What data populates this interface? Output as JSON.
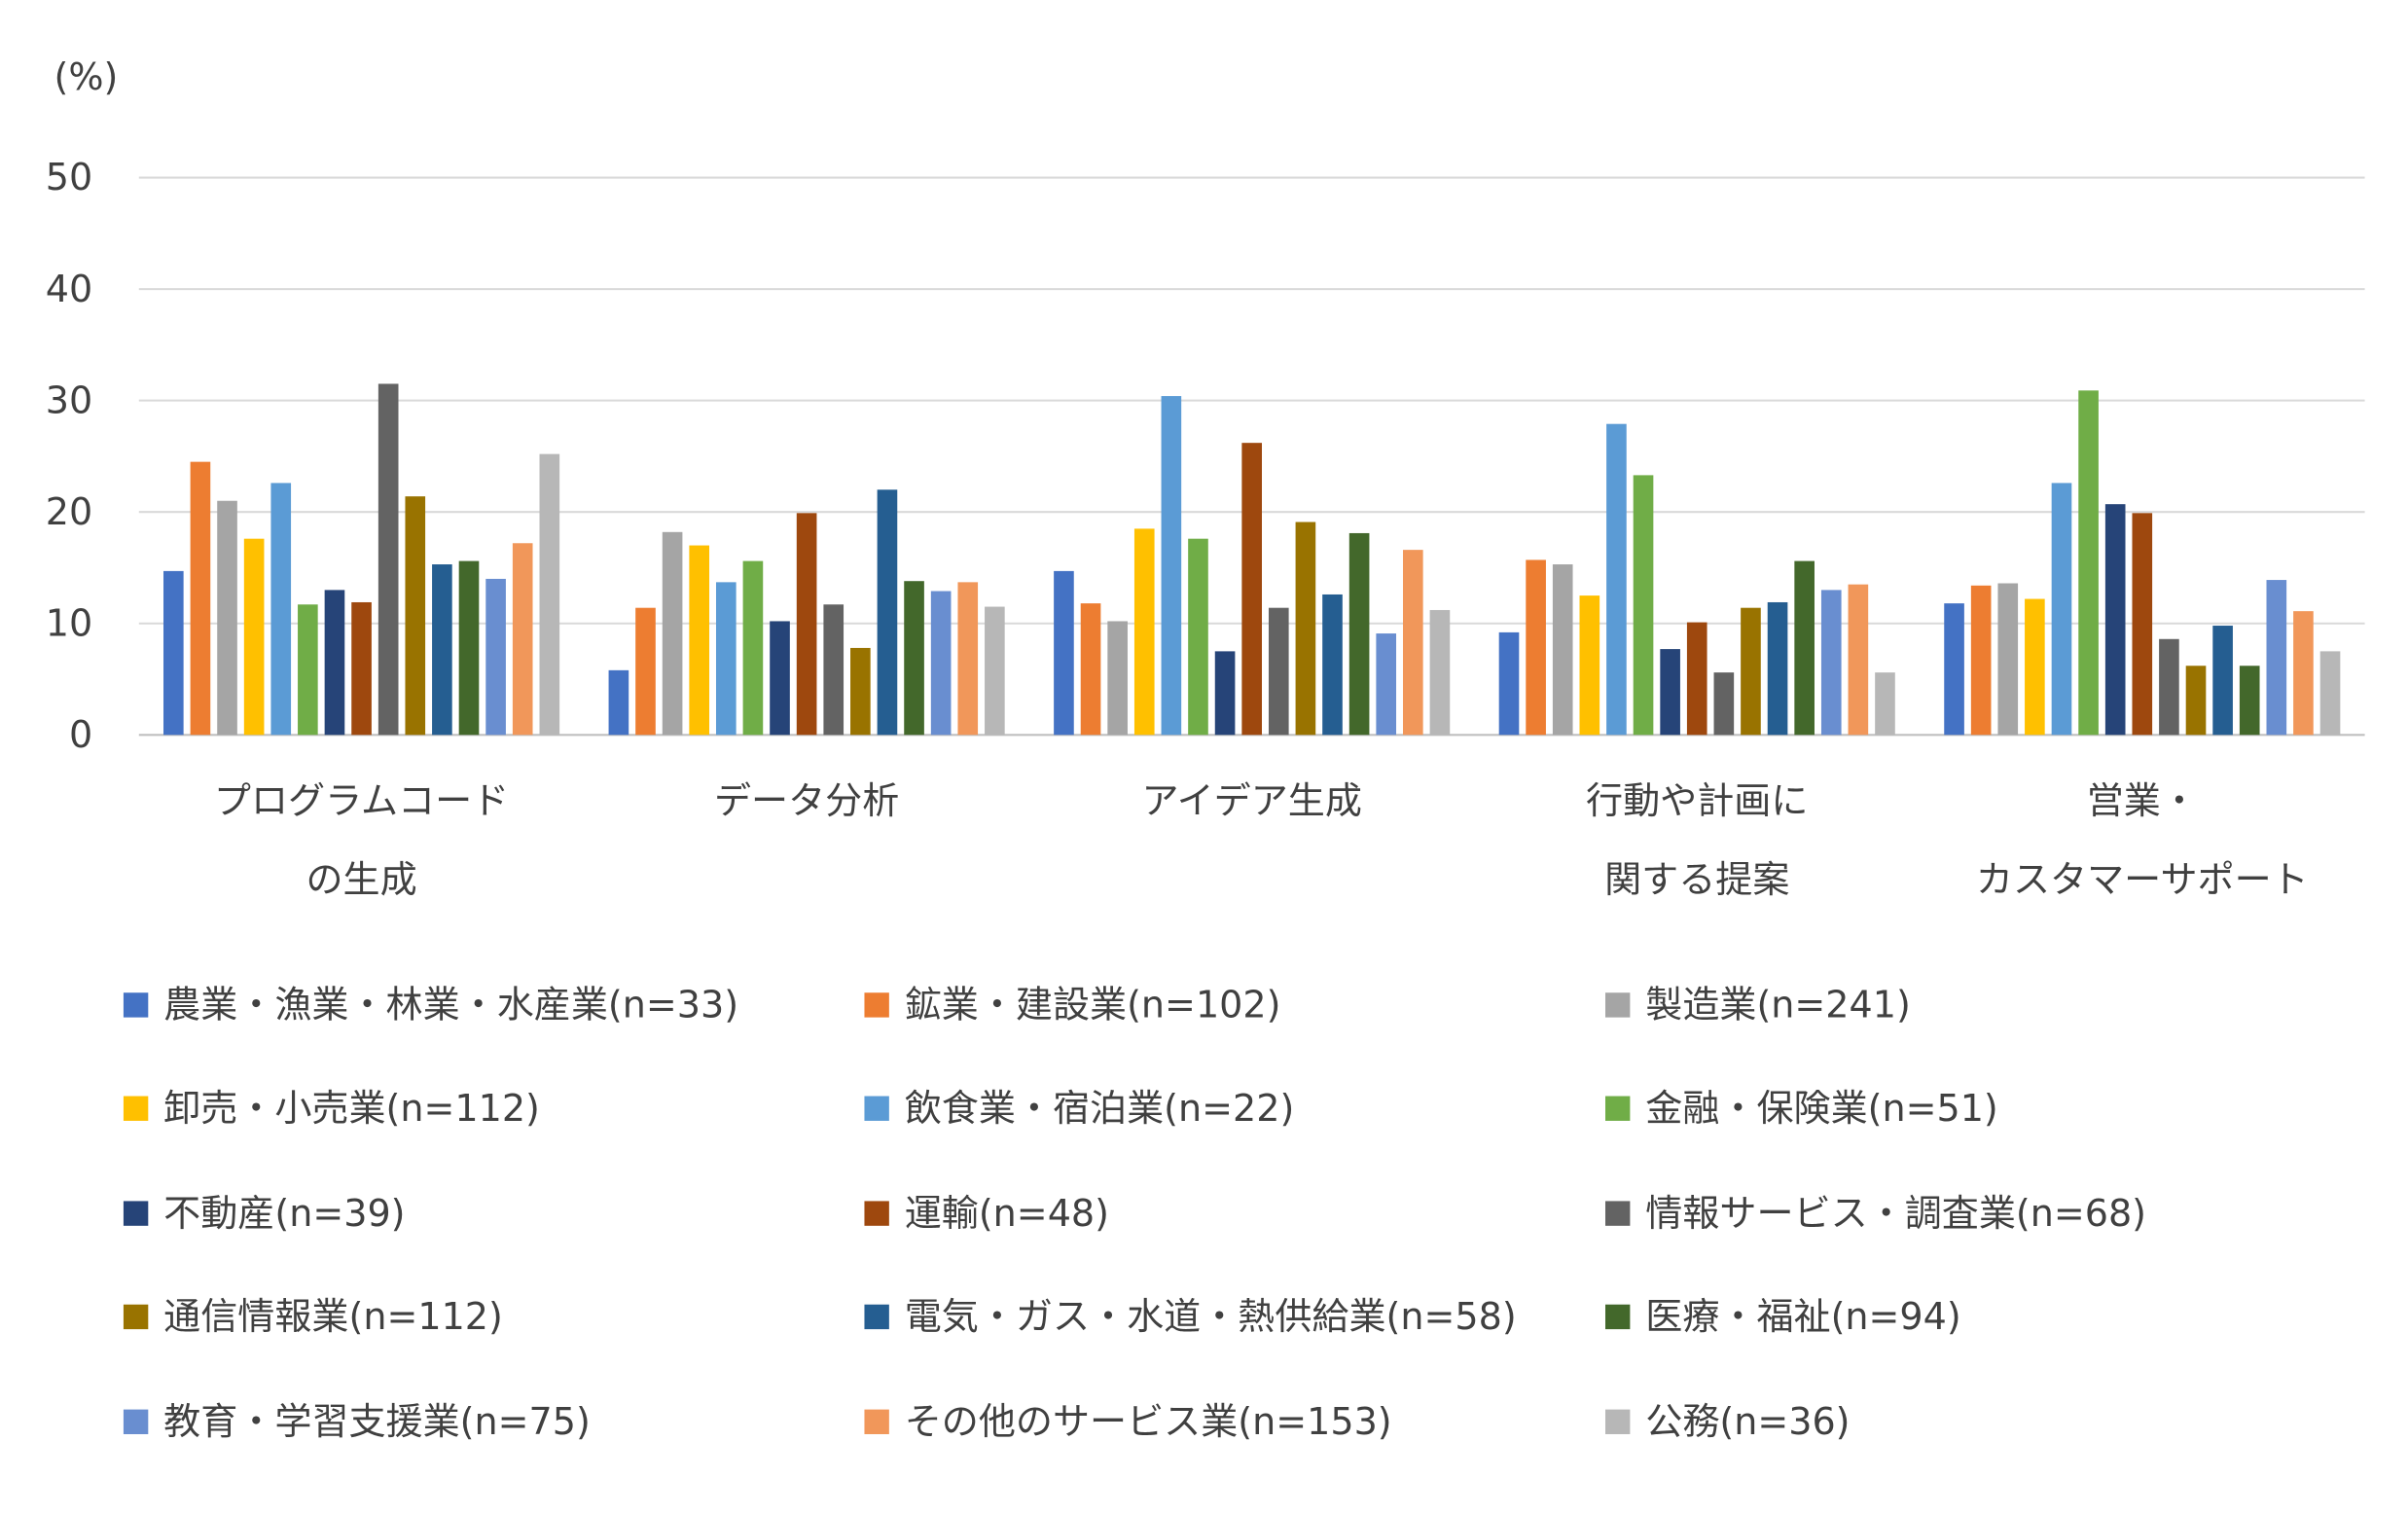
{
  "chart_data": {
    "type": "bar",
    "unit_label": "(%)",
    "ylim": [
      0,
      50
    ],
    "yticks": [
      0,
      10,
      20,
      30,
      40,
      50
    ],
    "grid": true,
    "legend_position": "bottom",
    "categories": [
      [
        "プログラムコード",
        "の生成"
      ],
      [
        "データ分析"
      ],
      [
        "アイデア生成"
      ],
      [
        "行動や計画に",
        "関する提案"
      ],
      [
        "営業・",
        "カスタマーサポート"
      ]
    ],
    "series": [
      {
        "name": "農業・漁業・林業・水産業(n=33)",
        "color": "#4472C4",
        "values": [
          14.7,
          5.8,
          14.7,
          9.2,
          11.8
        ]
      },
      {
        "name": "鉱業・建設業(n=102)",
        "color": "#ED7D31",
        "values": [
          24.5,
          11.4,
          11.8,
          15.7,
          13.4
        ]
      },
      {
        "name": "製造業(n=241)",
        "color": "#A5A5A5",
        "values": [
          21.0,
          18.2,
          10.2,
          15.3,
          13.6
        ]
      },
      {
        "name": "卸売・小売業(n=112)",
        "color": "#FFC000",
        "values": [
          17.6,
          17.0,
          18.5,
          12.5,
          12.2
        ]
      },
      {
        "name": "飲食業・宿泊業(n=22)",
        "color": "#5B9BD5",
        "values": [
          22.6,
          13.7,
          30.4,
          27.9,
          22.6
        ]
      },
      {
        "name": "金融・保険業(n=51)",
        "color": "#70AD47",
        "values": [
          11.7,
          15.6,
          17.6,
          23.3,
          30.9
        ]
      },
      {
        "name": "不動産(n=39)",
        "color": "#264478",
        "values": [
          13.0,
          10.2,
          7.5,
          7.7,
          20.7
        ]
      },
      {
        "name": "運輸(n=48)",
        "color": "#9E480E",
        "values": [
          11.9,
          19.9,
          26.2,
          10.1,
          19.9
        ]
      },
      {
        "name": "情報サービス・調査業(n=68)",
        "color": "#636363",
        "values": [
          31.5,
          11.7,
          11.4,
          5.6,
          8.6
        ]
      },
      {
        "name": "通信情報業(n=112)",
        "color": "#997300",
        "values": [
          21.4,
          7.8,
          19.1,
          11.4,
          6.2
        ]
      },
      {
        "name": "電気・ガス・水道・熱供給業(n=58)",
        "color": "#255E91",
        "values": [
          15.3,
          22.0,
          12.6,
          11.9,
          9.8
        ]
      },
      {
        "name": "医療・福祉(n=94)",
        "color": "#43682B",
        "values": [
          15.6,
          13.8,
          18.1,
          15.6,
          6.2
        ]
      },
      {
        "name": "教育・学習支援業(n=75)",
        "color": "#698ED0",
        "values": [
          14.0,
          12.9,
          9.1,
          13.0,
          13.9
        ]
      },
      {
        "name": "その他のサービス業(n=153)",
        "color": "#F1975A",
        "values": [
          17.2,
          13.7,
          16.6,
          13.5,
          11.1
        ]
      },
      {
        "name": "公務(n=36)",
        "color": "#B7B7B7",
        "values": [
          25.2,
          11.5,
          11.2,
          5.6,
          7.5
        ]
      }
    ]
  }
}
